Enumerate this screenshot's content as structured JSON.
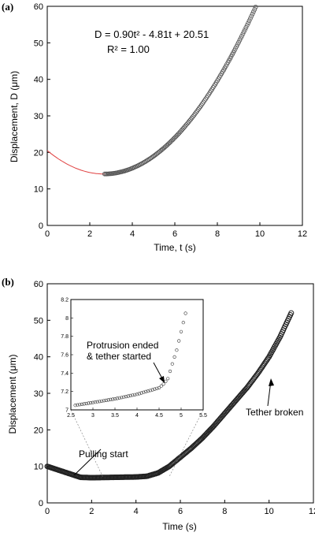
{
  "chart_data": [
    {
      "type": "scatter",
      "panel_label": "(a)",
      "xlabel": "Time, t (s)",
      "ylabel": "Displacement, D (μm)",
      "xlim": [
        0,
        12
      ],
      "ylim": [
        0,
        60
      ],
      "xticks": [
        0,
        2,
        4,
        6,
        8,
        10,
        12
      ],
      "yticks": [
        0,
        10,
        20,
        30,
        40,
        50,
        60
      ],
      "grid": false,
      "equation": "D = 0.90t² - 4.81t + 20.51",
      "r_squared": "R² = 1.00",
      "fit": {
        "a": 0.9,
        "b": -4.81,
        "c": 20.51,
        "t_start": 0,
        "t_end": 2.7,
        "color": "#e04040"
      },
      "series": [
        {
          "marker": "open-circle",
          "t_start": 2.7,
          "t_end": 9.8,
          "step": 0.05
        }
      ]
    },
    {
      "type": "scatter",
      "panel_label": "(b)",
      "xlabel": "Time (s)",
      "ylabel": "Displacement (μm)",
      "xlim": [
        0,
        12
      ],
      "ylim": [
        0,
        60
      ],
      "xticks": [
        0,
        2,
        4,
        6,
        8,
        10,
        12
      ],
      "yticks": [
        0,
        10,
        20,
        30,
        40,
        50,
        60
      ],
      "grid": false,
      "series": [
        {
          "marker": "open-circle",
          "x": [
            0,
            0.5,
            1.0,
            1.5,
            2.0,
            3.0,
            4.0,
            4.5,
            5.0,
            5.5,
            6.0,
            6.5,
            7.0,
            7.5,
            8.0,
            8.5,
            9.0,
            9.5,
            10.0,
            10.5,
            11.0
          ],
          "y": [
            10,
            9.0,
            8.0,
            7.0,
            6.9,
            7.0,
            7.1,
            7.3,
            8.2,
            10.0,
            12.5,
            15.0,
            17.8,
            21.0,
            24.5,
            28.0,
            31.5,
            35.5,
            40.0,
            45.5,
            52.0
          ]
        }
      ],
      "annotations": [
        {
          "text": "Pulling start"
        },
        {
          "text": "Tether broken"
        }
      ],
      "inset": {
        "xlim": [
          2.5,
          5.5
        ],
        "ylim": [
          7,
          8.2
        ],
        "xticks": [
          "2.5",
          "3",
          "3.5",
          "4",
          "4.5",
          "5",
          "5.5"
        ],
        "yticks": [
          "7",
          "7.2",
          "7.4",
          "7.6",
          "7.8",
          "8",
          "8.2"
        ],
        "annotation": [
          "Protrusion ended",
          "& tether started"
        ],
        "series": [
          {
            "marker": "open-circle",
            "x": [
              2.6,
              3.0,
              3.5,
              4.0,
              4.5,
              4.6,
              4.7,
              4.8,
              4.9,
              5.0,
              5.1
            ],
            "y": [
              7.05,
              7.08,
              7.12,
              7.17,
              7.24,
              7.28,
              7.34,
              7.5,
              7.65,
              7.85,
              8.05
            ]
          }
        ]
      }
    }
  ]
}
